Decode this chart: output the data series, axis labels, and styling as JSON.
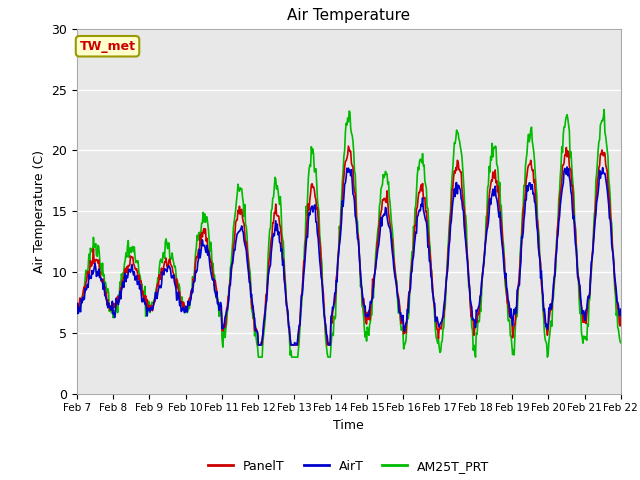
{
  "title": "Air Temperature",
  "xlabel": "Time",
  "ylabel": "Air Temperature (C)",
  "ylim": [
    0,
    30
  ],
  "annotation_text": "TW_met",
  "annotation_color": "#cc0000",
  "annotation_bg": "#ffffcc",
  "annotation_border": "#999900",
  "bg_color": "#e8e8e8",
  "fig_bg": "#ffffff",
  "series": {
    "PanelT": {
      "color": "#cc0000",
      "lw": 1.2
    },
    "AirT": {
      "color": "#0000cc",
      "lw": 1.2
    },
    "AM25T_PRT": {
      "color": "#00bb00",
      "lw": 1.2
    }
  },
  "xtick_labels": [
    "Feb 7",
    "Feb 8",
    "Feb 9",
    "Feb 10",
    "Feb 11",
    "Feb 12",
    "Feb 13",
    "Feb 14",
    "Feb 15",
    "Feb 16",
    "Feb 17",
    "Feb 18",
    "Feb 19",
    "Feb 20",
    "Feb 21",
    "Feb 22"
  ],
  "ytick_labels": [
    "0",
    "5",
    "10",
    "15",
    "20",
    "25",
    "30"
  ]
}
